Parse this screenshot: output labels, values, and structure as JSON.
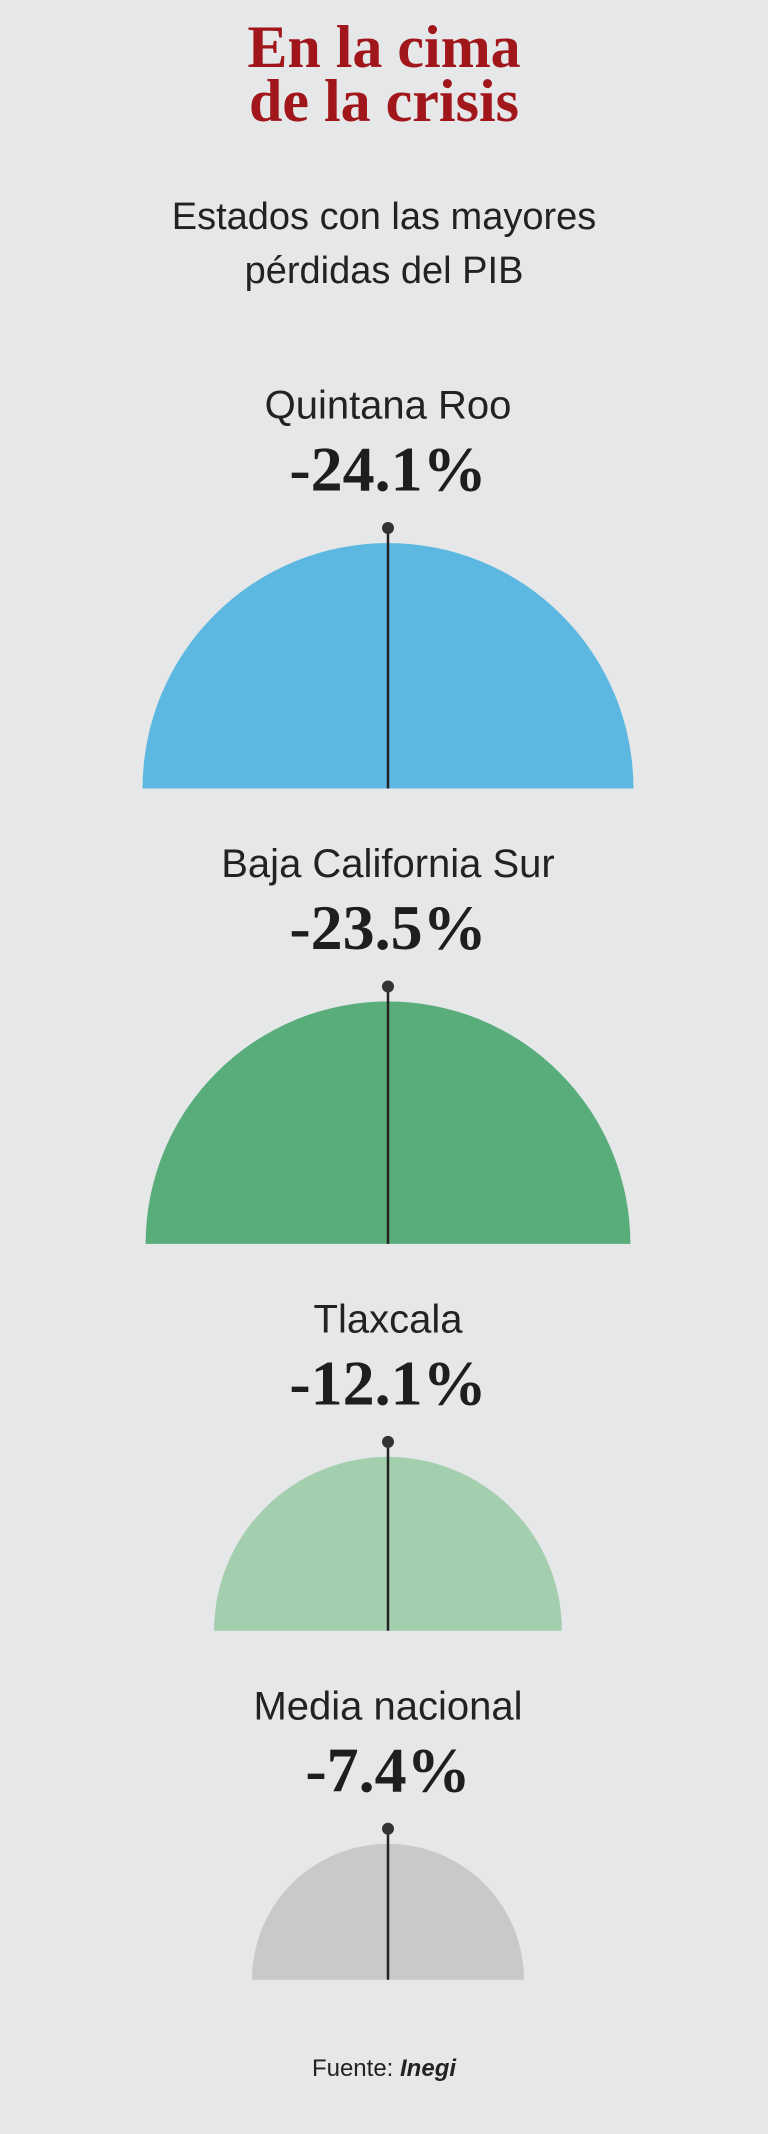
{
  "chart_data": {
    "type": "semicircle",
    "title": "En la cima de la crisis",
    "subtitle": "Estados con las mayores pérdidas del PIB",
    "categories": [
      "Quintana Roo",
      "Baja California Sur",
      "Tlaxcala",
      "Media nacional"
    ],
    "values": [
      -24.1,
      -23.5,
      -12.1,
      -7.4
    ],
    "value_labels": [
      "-24.1%",
      "-23.5%",
      "-12.1%",
      "-7.4%"
    ],
    "colors": [
      "#5cb8e0",
      "#58ad7a",
      "#a3cfae",
      "#c8c9cb"
    ],
    "source_label": "Fuente:",
    "source": "Inegi"
  }
}
